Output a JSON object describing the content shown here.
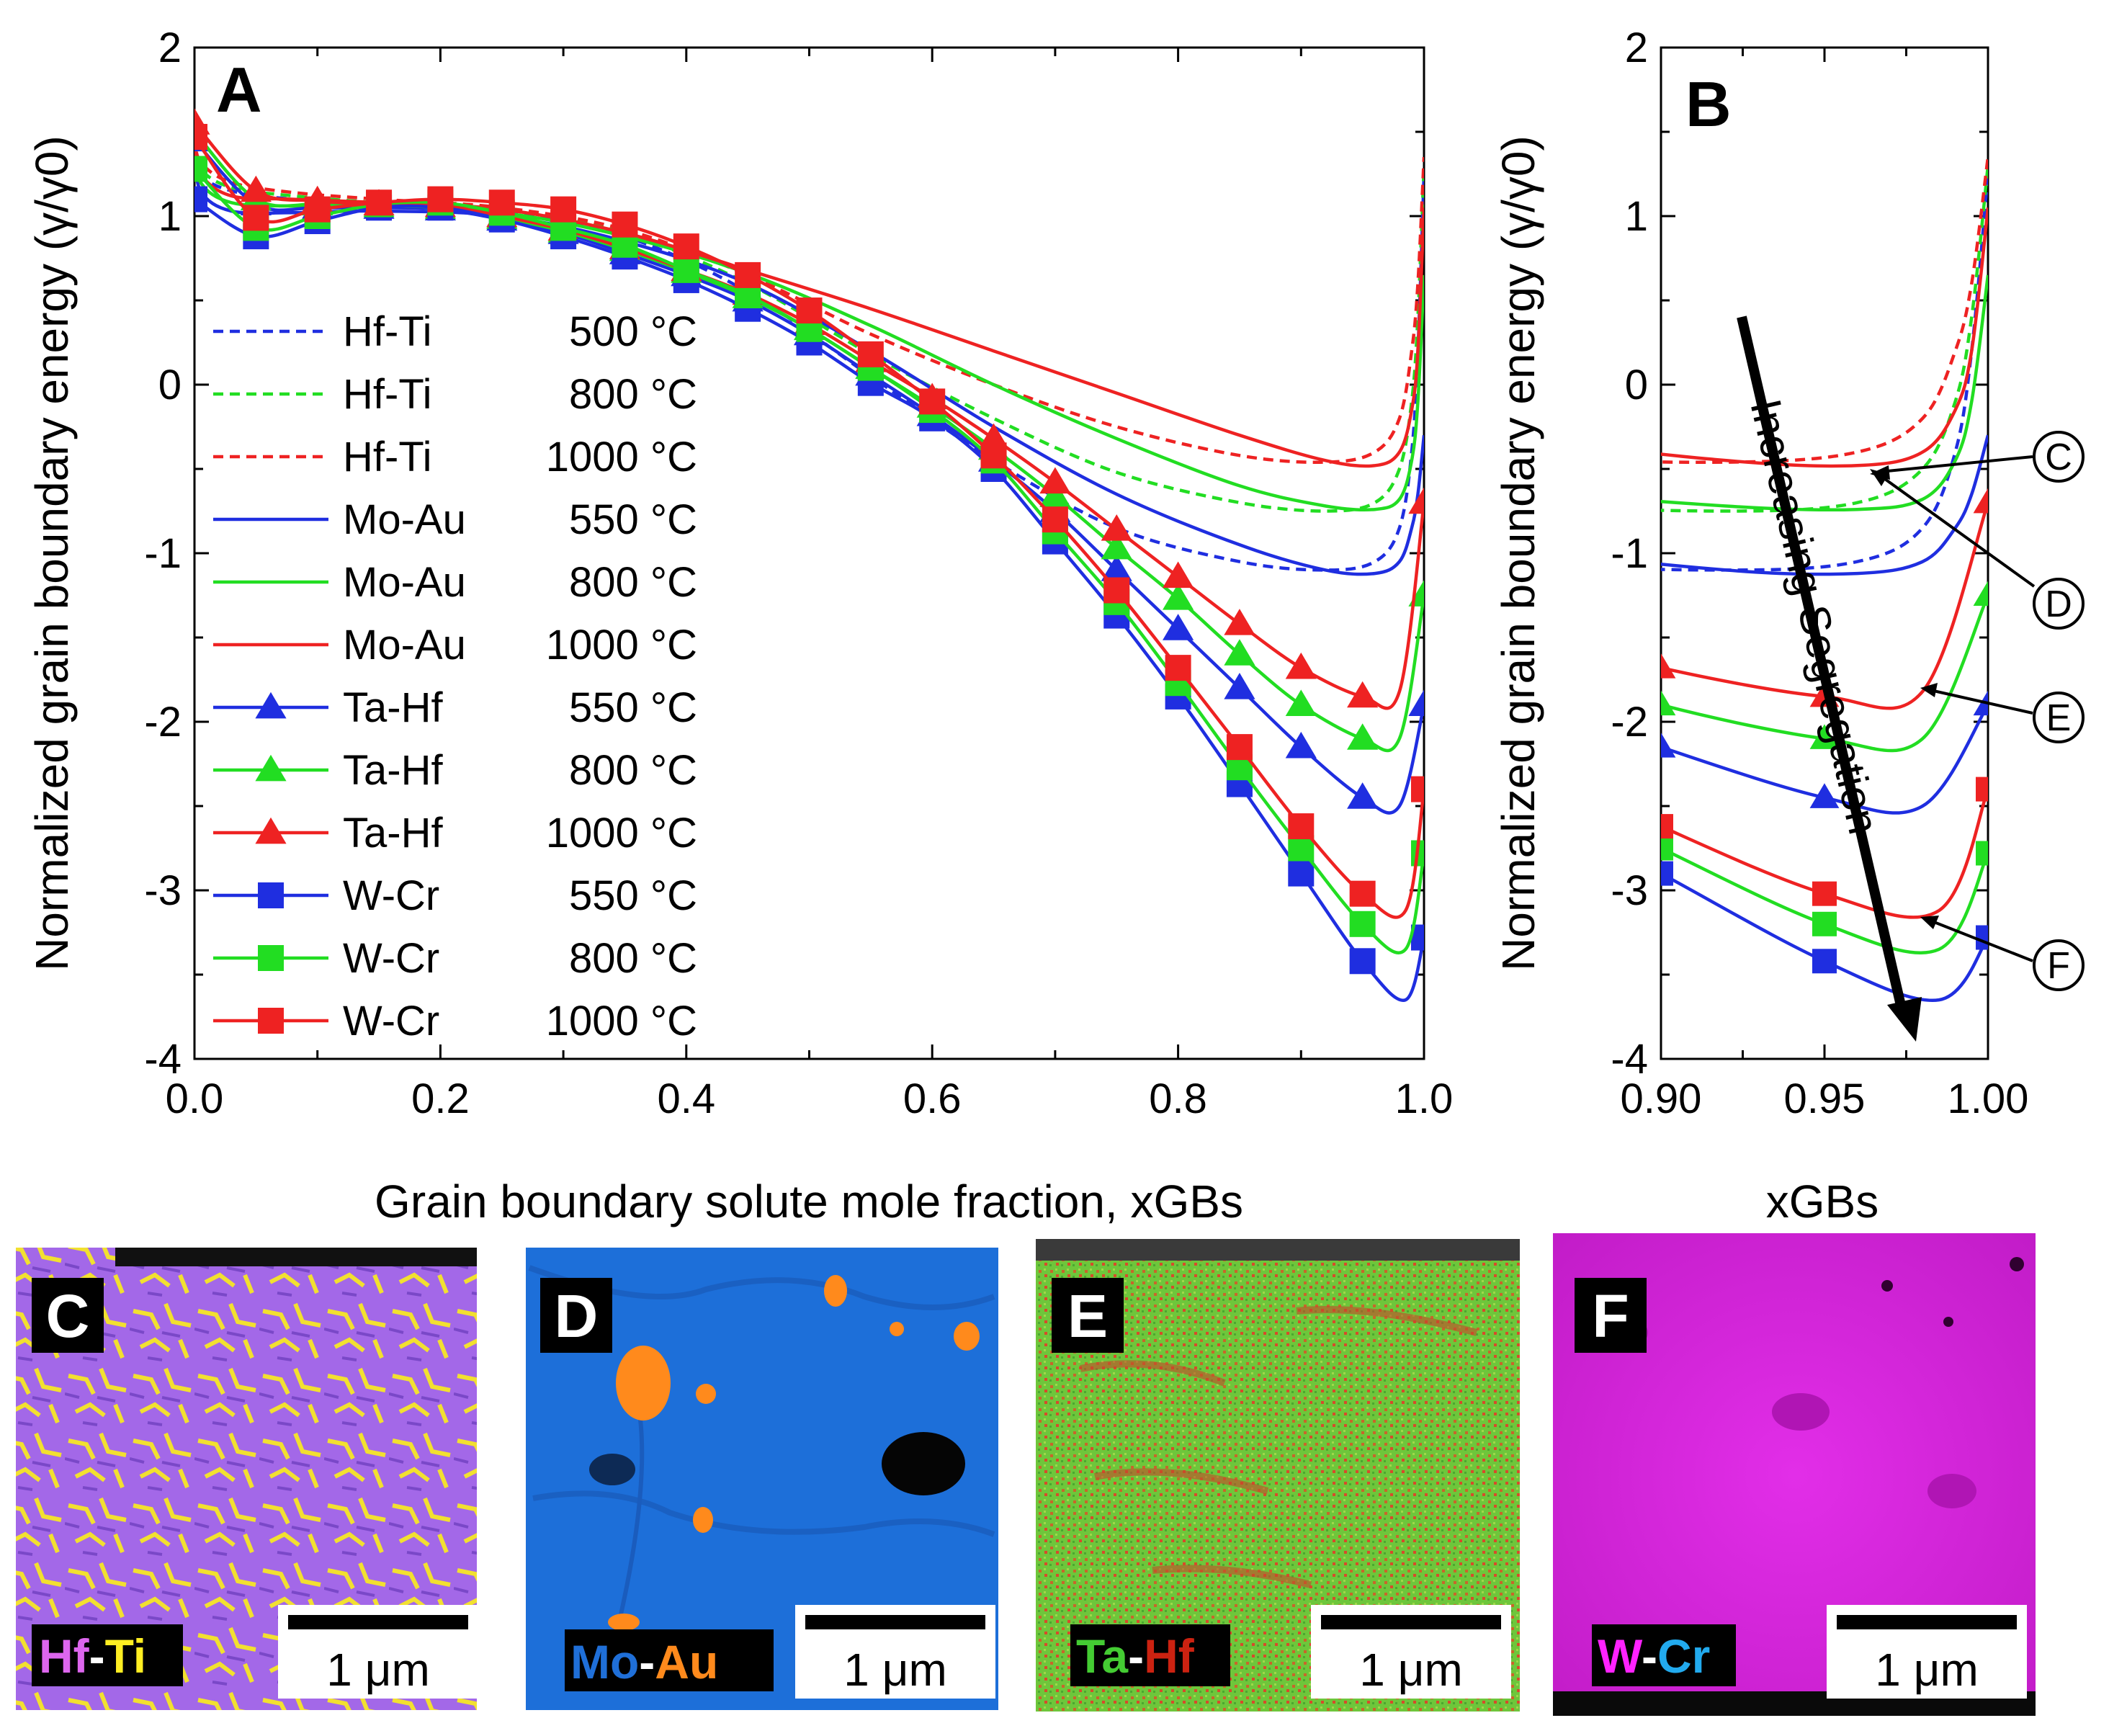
{
  "chart_data": [
    {
      "panel": "A",
      "type": "line",
      "xlabel": "Grain boundary solute mole fraction, xGBs",
      "ylabel": "Normalized grain boundary energy (γ/γ0)",
      "xlim": [
        0.0,
        1.0
      ],
      "ylim": [
        -4,
        2
      ],
      "xticks": [
        "0.0",
        "0.2",
        "0.4",
        "0.6",
        "0.8",
        "1.0"
      ],
      "yticks": [
        "-4",
        "-3",
        "-2",
        "-1",
        "0",
        "1",
        "2"
      ],
      "legend_position": "left-middle",
      "series": [
        {
          "alloy": "Hf-Ti",
          "temp": "500 °C",
          "color": "#1f2ee0",
          "style": "dashed",
          "marker": "none",
          "x": [
            0.0,
            0.005,
            0.03,
            0.08,
            0.15,
            0.25,
            0.35,
            0.45,
            0.55,
            0.65,
            0.75,
            0.85,
            0.92,
            0.96,
            0.98,
            0.99,
            0.995,
            1.0
          ],
          "y": [
            1.45,
            1.25,
            1.15,
            1.1,
            1.07,
            1.03,
            0.88,
            0.55,
            0.05,
            -0.45,
            -0.85,
            -1.05,
            -1.1,
            -1.05,
            -0.85,
            -0.4,
            0.2,
            1.25
          ]
        },
        {
          "alloy": "Hf-Ti",
          "temp": "800 °C",
          "color": "#22dd22",
          "style": "dashed",
          "marker": "none",
          "x": [
            0.0,
            0.005,
            0.03,
            0.08,
            0.15,
            0.25,
            0.35,
            0.45,
            0.55,
            0.65,
            0.75,
            0.85,
            0.92,
            0.96,
            0.98,
            0.99,
            0.995,
            1.0
          ],
          "y": [
            1.45,
            1.28,
            1.17,
            1.12,
            1.08,
            1.04,
            0.9,
            0.6,
            0.18,
            -0.2,
            -0.52,
            -0.7,
            -0.75,
            -0.7,
            -0.5,
            -0.1,
            0.4,
            1.3
          ]
        },
        {
          "alloy": "Hf-Ti",
          "temp": "1000 °C",
          "color": "#ee2222",
          "style": "dashed",
          "marker": "none",
          "x": [
            0.0,
            0.005,
            0.03,
            0.08,
            0.15,
            0.25,
            0.35,
            0.45,
            0.55,
            0.65,
            0.75,
            0.85,
            0.92,
            0.96,
            0.98,
            0.99,
            0.995,
            1.0
          ],
          "y": [
            1.48,
            1.32,
            1.2,
            1.14,
            1.1,
            1.05,
            0.92,
            0.65,
            0.3,
            0.0,
            -0.25,
            -0.42,
            -0.46,
            -0.4,
            -0.2,
            0.2,
            0.6,
            1.35
          ]
        },
        {
          "alloy": "Mo-Au",
          "temp": "550 °C",
          "color": "#1f2ee0",
          "style": "solid",
          "marker": "none",
          "x": [
            0.0,
            0.005,
            0.03,
            0.08,
            0.15,
            0.25,
            0.35,
            0.45,
            0.55,
            0.65,
            0.75,
            0.85,
            0.92,
            0.96,
            0.98,
            0.99,
            0.995,
            1.0
          ],
          "y": [
            1.4,
            1.15,
            1.03,
            1.02,
            1.03,
            1.0,
            0.85,
            0.6,
            0.2,
            -0.25,
            -0.65,
            -0.95,
            -1.1,
            -1.12,
            -1.05,
            -0.85,
            -0.65,
            -0.3
          ]
        },
        {
          "alloy": "Mo-Au",
          "temp": "800 °C",
          "color": "#22dd22",
          "style": "solid",
          "marker": "none",
          "x": [
            0.0,
            0.005,
            0.03,
            0.08,
            0.15,
            0.25,
            0.35,
            0.45,
            0.55,
            0.65,
            0.75,
            0.85,
            0.92,
            0.96,
            0.98,
            0.99,
            0.995,
            1.0
          ],
          "y": [
            1.42,
            1.2,
            1.08,
            1.06,
            1.06,
            1.02,
            0.88,
            0.66,
            0.35,
            0.0,
            -0.32,
            -0.6,
            -0.72,
            -0.74,
            -0.68,
            -0.45,
            -0.1,
            0.65
          ]
        },
        {
          "alloy": "Mo-Au",
          "temp": "1000 °C",
          "color": "#ee2222",
          "style": "solid",
          "marker": "none",
          "x": [
            0.0,
            0.005,
            0.03,
            0.08,
            0.15,
            0.25,
            0.35,
            0.45,
            0.55,
            0.65,
            0.75,
            0.85,
            0.92,
            0.96,
            0.98,
            0.99,
            0.995,
            1.0
          ],
          "y": [
            1.45,
            1.25,
            1.12,
            1.1,
            1.08,
            1.04,
            0.9,
            0.68,
            0.45,
            0.2,
            -0.05,
            -0.3,
            -0.45,
            -0.48,
            -0.4,
            -0.15,
            0.2,
            1.05
          ]
        },
        {
          "alloy": "Ta-Hf",
          "temp": "550 °C",
          "color": "#1f2ee0",
          "style": "solid",
          "marker": "triangle",
          "x": [
            0.0,
            0.05,
            0.1,
            0.15,
            0.2,
            0.25,
            0.3,
            0.35,
            0.4,
            0.45,
            0.5,
            0.55,
            0.6,
            0.65,
            0.7,
            0.75,
            0.8,
            0.85,
            0.9,
            0.95,
            0.98,
            1.0
          ],
          "y": [
            1.45,
            1.07,
            1.05,
            1.05,
            1.04,
            0.98,
            0.9,
            0.78,
            0.65,
            0.5,
            0.3,
            0.06,
            -0.18,
            -0.45,
            -0.75,
            -1.1,
            -1.45,
            -1.8,
            -2.15,
            -2.45,
            -2.5,
            -1.9
          ]
        },
        {
          "alloy": "Ta-Hf",
          "temp": "800 °C",
          "color": "#22dd22",
          "style": "solid",
          "marker": "triangle",
          "x": [
            0.0,
            0.05,
            0.1,
            0.15,
            0.2,
            0.25,
            0.3,
            0.35,
            0.4,
            0.45,
            0.5,
            0.55,
            0.6,
            0.65,
            0.7,
            0.75,
            0.8,
            0.85,
            0.9,
            0.95,
            0.98,
            1.0
          ],
          "y": [
            1.5,
            1.1,
            1.07,
            1.06,
            1.05,
            0.99,
            0.91,
            0.8,
            0.67,
            0.52,
            0.33,
            0.1,
            -0.13,
            -0.38,
            -0.66,
            -0.97,
            -1.27,
            -1.6,
            -1.9,
            -2.1,
            -2.1,
            -1.25
          ]
        },
        {
          "alloy": "Ta-Hf",
          "temp": "1000 °C",
          "color": "#ee2222",
          "style": "solid",
          "marker": "triangle",
          "x": [
            0.0,
            0.05,
            0.1,
            0.15,
            0.2,
            0.25,
            0.3,
            0.35,
            0.4,
            0.45,
            0.5,
            0.55,
            0.6,
            0.65,
            0.7,
            0.75,
            0.8,
            0.85,
            0.9,
            0.95,
            0.98,
            1.0
          ],
          "y": [
            1.55,
            1.15,
            1.09,
            1.07,
            1.06,
            1.0,
            0.92,
            0.81,
            0.68,
            0.54,
            0.36,
            0.14,
            -0.08,
            -0.32,
            -0.58,
            -0.86,
            -1.14,
            -1.42,
            -1.68,
            -1.85,
            -1.82,
            -0.7
          ]
        },
        {
          "alloy": "W-Cr",
          "temp": "550 °C",
          "color": "#1f2ee0",
          "style": "solid",
          "marker": "square",
          "x": [
            0.0,
            0.05,
            0.1,
            0.15,
            0.2,
            0.25,
            0.3,
            0.35,
            0.4,
            0.45,
            0.5,
            0.55,
            0.6,
            0.65,
            0.7,
            0.75,
            0.8,
            0.85,
            0.9,
            0.95,
            0.985,
            1.0
          ],
          "y": [
            1.1,
            0.88,
            0.97,
            1.05,
            1.05,
            0.98,
            0.88,
            0.76,
            0.62,
            0.45,
            0.25,
            0.01,
            -0.2,
            -0.5,
            -0.93,
            -1.37,
            -1.85,
            -2.37,
            -2.9,
            -3.42,
            -3.65,
            -3.28
          ]
        },
        {
          "alloy": "W-Cr",
          "temp": "800 °C",
          "color": "#22dd22",
          "style": "solid",
          "marker": "square",
          "x": [
            0.0,
            0.05,
            0.1,
            0.15,
            0.2,
            0.25,
            0.3,
            0.35,
            0.4,
            0.45,
            0.5,
            0.55,
            0.6,
            0.65,
            0.7,
            0.75,
            0.8,
            0.85,
            0.9,
            0.95,
            0.985,
            1.0
          ],
          "y": [
            1.28,
            0.93,
            1.0,
            1.07,
            1.08,
            1.02,
            0.93,
            0.83,
            0.68,
            0.53,
            0.33,
            0.1,
            -0.15,
            -0.45,
            -0.87,
            -1.29,
            -1.77,
            -2.27,
            -2.75,
            -3.2,
            -3.35,
            -2.78
          ]
        },
        {
          "alloy": "W-Cr",
          "temp": "1000 °C",
          "color": "#ee2222",
          "style": "solid",
          "marker": "square",
          "x": [
            0.0,
            0.05,
            0.1,
            0.15,
            0.2,
            0.25,
            0.3,
            0.35,
            0.4,
            0.45,
            0.5,
            0.55,
            0.6,
            0.65,
            0.7,
            0.75,
            0.8,
            0.85,
            0.9,
            0.95,
            0.985,
            1.0
          ],
          "y": [
            1.47,
            0.99,
            1.04,
            1.08,
            1.1,
            1.08,
            1.04,
            0.95,
            0.82,
            0.65,
            0.44,
            0.18,
            -0.1,
            -0.42,
            -0.8,
            -1.22,
            -1.68,
            -2.15,
            -2.62,
            -3.02,
            -3.12,
            -2.4
          ]
        }
      ]
    },
    {
      "panel": "B",
      "type": "line",
      "xlabel": "xGBs",
      "ylabel": "Normalized grain boundary energy (γ/γ0)",
      "xlim": [
        0.9,
        1.0
      ],
      "ylim": [
        -4,
        2
      ],
      "xticks": [
        "0.90",
        "0.95",
        "1.00"
      ],
      "yticks": [
        "-4",
        "-3",
        "-2",
        "-1",
        "0",
        "1",
        "2"
      ],
      "annotation": "Increasing Segregation",
      "callouts": [
        "C",
        "D",
        "E",
        "F"
      ]
    }
  ],
  "legend": [
    {
      "alloy": "Hf-Ti",
      "temp": "500 °C"
    },
    {
      "alloy": "Hf-Ti",
      "temp": "800 °C"
    },
    {
      "alloy": "Hf-Ti",
      "temp": "1000 °C"
    },
    {
      "alloy": "Mo-Au",
      "temp": "550 °C"
    },
    {
      "alloy": "Mo-Au",
      "temp": "800 °C"
    },
    {
      "alloy": "Mo-Au",
      "temp": "1000 °C"
    },
    {
      "alloy": "Ta-Hf",
      "temp": "550 °C"
    },
    {
      "alloy": "Ta-Hf",
      "temp": "800 °C"
    },
    {
      "alloy": "Ta-Hf",
      "temp": "1000 °C"
    },
    {
      "alloy": "W-Cr",
      "temp": "550 °C"
    },
    {
      "alloy": "W-Cr",
      "temp": "800 °C"
    },
    {
      "alloy": "W-Cr",
      "temp": "1000 °C"
    }
  ],
  "panels": {
    "a_label": "A",
    "b_label": "B"
  },
  "images": [
    {
      "letter": "C",
      "el1": "Hf",
      "dash": "-",
      "el2": "Ti",
      "scale": "1 μm",
      "c1": "#dd66ee",
      "c2": "#ffee22"
    },
    {
      "letter": "D",
      "el1": "Mo",
      "dash": "-",
      "el2": "Au",
      "scale": "1 μm",
      "c1": "#1f6fd8",
      "c2": "#ff8a1c"
    },
    {
      "letter": "E",
      "el1": "Ta",
      "dash": "-",
      "el2": "Hf",
      "scale": "1 μm",
      "c1": "#44cc33",
      "c2": "#cc2211"
    },
    {
      "letter": "F",
      "el1": "W",
      "dash": "-",
      "el2": "Cr",
      "scale": "1 μm",
      "c1": "#ff22ff",
      "c2": "#22aaee"
    }
  ]
}
